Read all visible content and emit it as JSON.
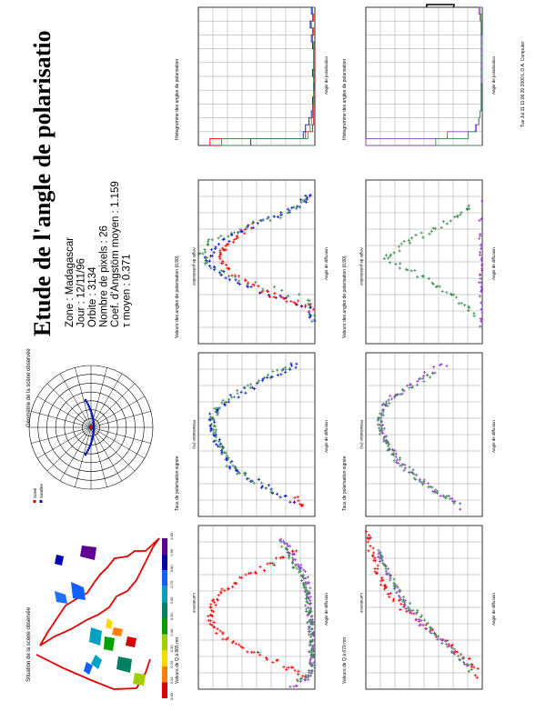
{
  "report": {
    "title": "Etude de l'angle de polarisatio",
    "info_lines": [
      "Zone : Madagascar",
      "Jour : 12/11/96",
      "Orbite : 3134",
      "Nombre de pixels : 26",
      "Coef. d'Angstöm moyen : 1.159",
      "τ moyen : 0.371"
    ],
    "footer": "Tue Jul 11 11:06:30 2000 L.O.A. Computer"
  },
  "map_panel": {
    "title": "Situation de la scène observée",
    "colorbar_ticks": [
      "0.00",
      "0.10",
      "0.20",
      "0.30",
      "0.40",
      "0.50",
      "0.60",
      "0.70",
      "0.80",
      "0.90",
      "1.00"
    ],
    "colors": [
      "#d40000",
      "#ff7f00",
      "#ffd700",
      "#a0d000",
      "#00a000",
      "#008060",
      "#00a0c0",
      "#1060ff",
      "#0000b0",
      "#600090"
    ]
  },
  "geometry_panel": {
    "title": "Géométrie de la scène observée",
    "legend": [
      {
        "label": "Soleil",
        "color": "#d40000"
      },
      {
        "label": "Satellite",
        "color": "#0010c0"
      }
    ]
  },
  "colors": {
    "red": "#ff0000",
    "green": "#3a8a50",
    "blue": "#0010d0",
    "purple": "#9040c8",
    "grid": "#888888"
  },
  "chart_data": [
    {
      "id": "lum-865",
      "type": "scatter",
      "title": "Valeurs de Q à 865 nm",
      "ylabel": "Luminance",
      "xlabel": "Angle de diffusion",
      "series": [
        {
          "color": "red",
          "points": [
            [
              10,
              0.008
            ],
            [
              20,
              0.025
            ],
            [
              30,
              0.05
            ],
            [
              40,
              0.07
            ],
            [
              50,
              0.085
            ],
            [
              60,
              0.09
            ],
            [
              70,
              0.088
            ],
            [
              80,
              0.082
            ],
            [
              90,
              0.07
            ],
            [
              100,
              0.052
            ],
            [
              110,
              0.032
            ],
            [
              120,
              0.014
            ]
          ]
        },
        {
          "color": "purple",
          "points": [
            [
              0,
              0.02
            ],
            [
              10,
              0.004
            ],
            [
              20,
              0.002
            ],
            [
              30,
              0.002
            ],
            [
              40,
              0.003
            ],
            [
              50,
              0.003
            ],
            [
              60,
              0.004
            ],
            [
              70,
              0.005
            ],
            [
              80,
              0.006
            ],
            [
              90,
              0.006
            ],
            [
              100,
              0.01
            ],
            [
              110,
              0.017
            ],
            [
              120,
              0.022
            ],
            [
              130,
              0.03
            ]
          ]
        },
        {
          "color": "green",
          "points": [
            [
              5,
              0.015
            ],
            [
              15,
              0.004
            ],
            [
              25,
              0.002
            ],
            [
              35,
              0.003
            ],
            [
              45,
              0.003
            ],
            [
              55,
              0.004
            ],
            [
              65,
              0.005
            ],
            [
              75,
              0.006
            ],
            [
              85,
              0.007
            ],
            [
              95,
              0.011
            ],
            [
              105,
              0.017
            ],
            [
              115,
              0.022
            ],
            [
              125,
              0.028
            ]
          ]
        }
      ]
    },
    {
      "id": "lum-670",
      "type": "scatter",
      "title": "Valeurs de Q à 670 nm",
      "ylabel": "Luminance",
      "xlabel": "Angle de diffusion",
      "series": [
        {
          "color": "red",
          "points": [
            [
              10,
              0.002
            ],
            [
              25,
              0.01
            ],
            [
              40,
              0.03
            ],
            [
              55,
              0.05
            ],
            [
              70,
              0.07
            ],
            [
              85,
              0.082
            ],
            [
              95,
              0.088
            ],
            [
              110,
              0.093
            ],
            [
              125,
              0.097
            ],
            [
              135,
              0.1
            ]
          ]
        },
        {
          "color": "purple",
          "points": [
            [
              20,
              0.012
            ],
            [
              35,
              0.03
            ],
            [
              50,
              0.045
            ],
            [
              65,
              0.06
            ],
            [
              80,
              0.07
            ],
            [
              95,
              0.078
            ],
            [
              110,
              0.086
            ],
            [
              120,
              0.09
            ]
          ]
        },
        {
          "color": "green",
          "points": [
            [
              15,
              0.008
            ],
            [
              30,
              0.022
            ],
            [
              45,
              0.038
            ],
            [
              60,
              0.052
            ],
            [
              75,
              0.066
            ],
            [
              90,
              0.075
            ],
            [
              105,
              0.083
            ],
            [
              118,
              0.088
            ]
          ]
        }
      ]
    },
    {
      "id": "rate-1",
      "type": "scatter",
      "title": "Taux de polarisation signée",
      "ylabel": "Polarisation (%)",
      "xlabel": "Angle de diffusion",
      "series": [
        {
          "color": "red",
          "points": [
            [
              10,
              -0.03
            ],
            [
              20,
              -0.02
            ]
          ]
        },
        {
          "color": "blue",
          "points": [
            [
              15,
              -0.02
            ],
            [
              30,
              0.02
            ],
            [
              45,
              0.06
            ],
            [
              60,
              0.08
            ],
            [
              75,
              0.09
            ],
            [
              90,
              0.1
            ],
            [
              105,
              0.1
            ],
            [
              120,
              0.08
            ],
            [
              135,
              0.04
            ],
            [
              150,
              0.0
            ],
            [
              160,
              -0.03
            ]
          ]
        },
        {
          "color": "green",
          "points": [
            [
              25,
              0.01
            ],
            [
              40,
              0.05
            ],
            [
              55,
              0.075
            ],
            [
              70,
              0.085
            ],
            [
              85,
              0.095
            ],
            [
              100,
              0.1
            ],
            [
              115,
              0.09
            ],
            [
              130,
              0.06
            ],
            [
              145,
              0.02
            ],
            [
              158,
              -0.02
            ]
          ]
        }
      ]
    },
    {
      "id": "rate-2",
      "type": "scatter",
      "title": "Taux de polarisation signée",
      "ylabel": "Polarisation (%)",
      "xlabel": "Angle de diffusion",
      "series": [
        {
          "color": "purple",
          "points": [
            [
              10,
              -0.02
            ],
            [
              25,
              0.015
            ],
            [
              40,
              0.045
            ],
            [
              55,
              0.07
            ],
            [
              70,
              0.085
            ],
            [
              85,
              0.095
            ],
            [
              100,
              0.1
            ],
            [
              115,
              0.095
            ],
            [
              130,
              0.07
            ],
            [
              145,
              0.035
            ],
            [
              160,
              0.0
            ]
          ]
        },
        {
          "color": "green",
          "points": [
            [
              15,
              -0.01
            ],
            [
              30,
              0.025
            ],
            [
              45,
              0.055
            ],
            [
              60,
              0.075
            ],
            [
              75,
              0.09
            ],
            [
              90,
              0.098
            ],
            [
              105,
              0.1
            ],
            [
              120,
              0.085
            ],
            [
              135,
              0.055
            ],
            [
              150,
              0.02
            ]
          ]
        }
      ]
    },
    {
      "id": "angle-1",
      "type": "scatter",
      "title": "Valeurs des angles de polarisation (0,90)",
      "ylabel": "Angle de polarisation",
      "xlabel": "Angle de diffusion",
      "series": [
        {
          "color": "red",
          "points": [
            [
              40,
              5
            ],
            [
              45,
              25
            ],
            [
              52,
              60
            ],
            [
              62,
              90
            ],
            [
              80,
              130
            ],
            [
              95,
              150
            ],
            [
              105,
              140
            ],
            [
              120,
              120
            ],
            [
              135,
              90
            ]
          ]
        },
        {
          "color": "blue",
          "points": [
            [
              20,
              2
            ],
            [
              40,
              8
            ],
            [
              60,
              95
            ],
            [
              75,
              140
            ],
            [
              90,
              170
            ],
            [
              110,
              150
            ],
            [
              125,
              110
            ],
            [
              140,
              60
            ],
            [
              155,
              20
            ],
            [
              165,
              5
            ]
          ]
        },
        {
          "color": "green",
          "points": [
            [
              25,
              1
            ],
            [
              50,
              10
            ],
            [
              70,
              120
            ],
            [
              88,
              165
            ],
            [
              100,
              175
            ],
            [
              115,
              160
            ],
            [
              130,
              100
            ],
            [
              145,
              40
            ],
            [
              160,
              8
            ]
          ]
        }
      ]
    },
    {
      "id": "angle-2",
      "type": "scatter",
      "title": "Valeurs des angles de polarisation (0,90)",
      "ylabel": "Angle de polarisation",
      "xlabel": "Angle de diffusion",
      "series": [
        {
          "color": "purple",
          "points": [
            [
              20,
              0
            ],
            [
              40,
              1
            ],
            [
              60,
              1
            ],
            [
              80,
              0
            ],
            [
              100,
              0
            ],
            [
              120,
              1
            ],
            [
              140,
              0
            ],
            [
              160,
              1
            ]
          ]
        },
        {
          "color": "green",
          "points": [
            [
              30,
              10
            ],
            [
              50,
              40
            ],
            [
              65,
              70
            ],
            [
              80,
              110
            ],
            [
              95,
              150
            ],
            [
              110,
              120
            ],
            [
              125,
              80
            ],
            [
              140,
              40
            ],
            [
              155,
              15
            ]
          ]
        }
      ]
    },
    {
      "id": "hist-1",
      "type": "bar",
      "title": "Histogramme des angles de polarisation",
      "xlabel": "Angle de polarisation",
      "series": [
        {
          "color": "red",
          "values": [
            90,
            8,
            2,
            1,
            1,
            1,
            1,
            0,
            1,
            0,
            1,
            0,
            0,
            0,
            1,
            2,
            1,
            3,
            1,
            2
          ]
        },
        {
          "color": "blue",
          "values": [
            55,
            10,
            8,
            5,
            3,
            2,
            2,
            1,
            1,
            1,
            2,
            1,
            1,
            1,
            2,
            3,
            2,
            4,
            2,
            3
          ]
        },
        {
          "color": "green",
          "values": [
            80,
            6,
            4,
            3,
            2,
            2,
            1,
            1,
            1,
            1,
            1,
            1,
            1,
            1,
            1,
            2,
            2,
            3,
            2,
            2
          ]
        }
      ]
    },
    {
      "id": "hist-2",
      "type": "bar",
      "title": "Histogramme des angles de polarisation",
      "xlabel": "Angle de polarisation",
      "series": [
        {
          "color": "purple",
          "values": [
            100,
            30,
            6,
            3,
            2,
            1,
            1,
            1,
            1,
            1,
            0,
            1,
            0,
            1,
            0,
            1,
            1,
            1,
            2,
            3
          ]
        },
        {
          "color": "green",
          "values": [
            40,
            12,
            5,
            3,
            2,
            1,
            1,
            1,
            1,
            0,
            1,
            0,
            1,
            0,
            1,
            0,
            1,
            1,
            1,
            2
          ]
        }
      ]
    }
  ]
}
